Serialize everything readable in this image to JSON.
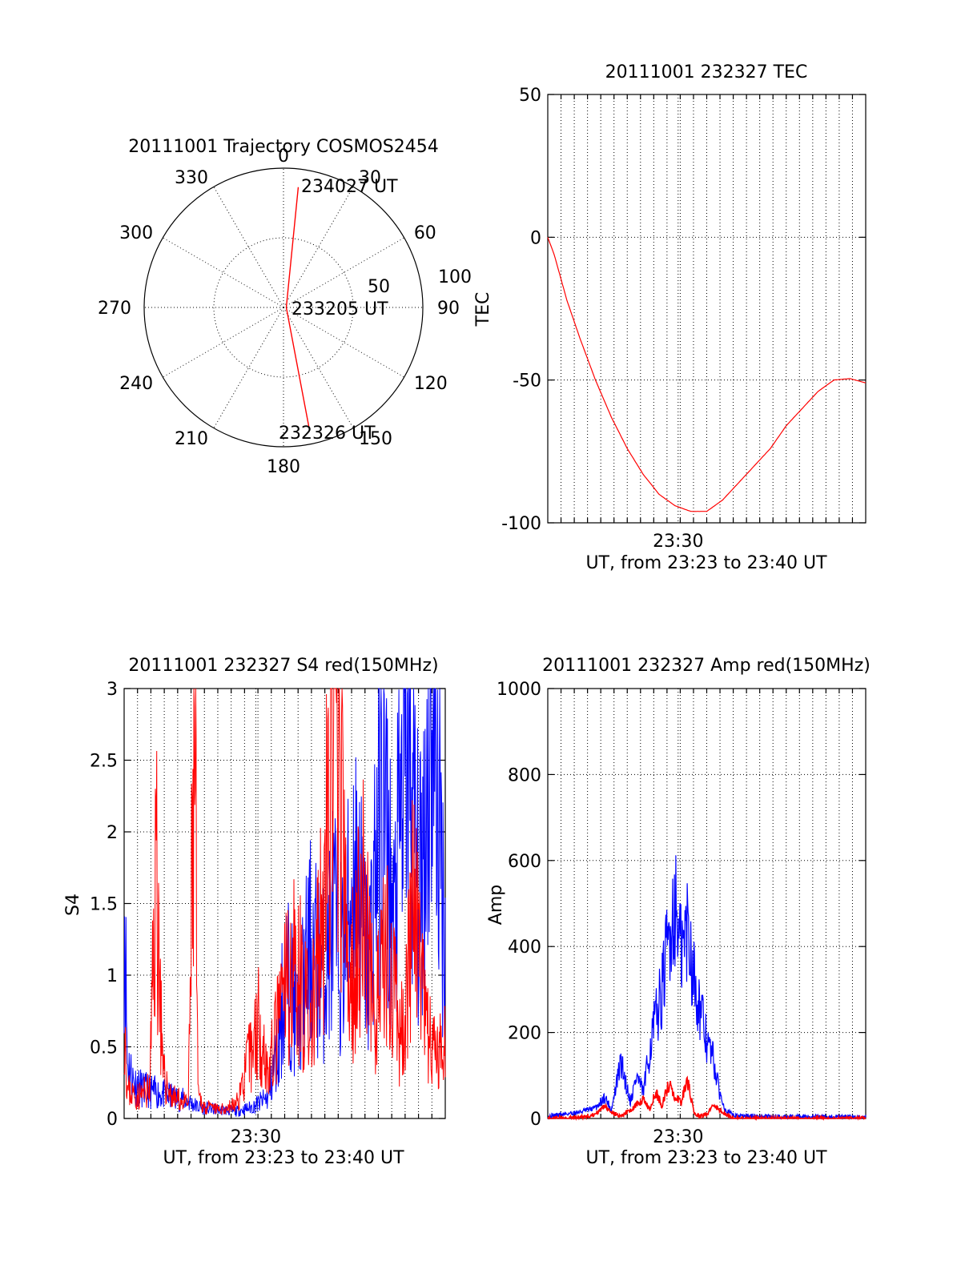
{
  "chart_data": [
    {
      "type": "polar",
      "title": "20111001 Trajectory COSMOS2454",
      "angle_ticks": [
        "0",
        "30",
        "60",
        "90",
        "120",
        "150",
        "180",
        "210",
        "240",
        "270",
        "300",
        "330"
      ],
      "radius_ticks": [
        "50",
        "100"
      ],
      "rlim": [
        0,
        100
      ],
      "trajectory": {
        "color": "#ff0000",
        "points": [
          {
            "azimuth_deg": 168,
            "zenith_deg": 88
          },
          {
            "azimuth_deg": 90,
            "zenith_deg": 2
          },
          {
            "azimuth_deg": 7,
            "zenith_deg": 87
          }
        ]
      },
      "annotations": [
        "234027 UT",
        "233205 UT",
        "232326 UT"
      ]
    },
    {
      "type": "line",
      "title": "20111001 232327 TEC",
      "xlabel": "UT, from 23:23 to 23:40 UT",
      "ylabel": "TEC",
      "xticklabels": [
        "23:30"
      ],
      "yticks": [
        "50",
        "0",
        "-50",
        "-100"
      ],
      "xlim": [
        0,
        1000
      ],
      "ylim": [
        -100,
        50
      ],
      "series": [
        {
          "color": "#ff0000",
          "x": [
            0,
            20,
            60,
            100,
            150,
            200,
            250,
            300,
            350,
            400,
            450,
            500,
            550,
            600,
            650,
            700,
            750,
            800,
            850,
            900,
            950,
            1000
          ],
          "y": [
            0,
            -6,
            -22,
            -35,
            -50,
            -63,
            -74,
            -83,
            -90,
            -94,
            -96,
            -96,
            -92,
            -86,
            -80,
            -74,
            -66,
            -60,
            -54,
            -50,
            -49.5,
            -51
          ]
        }
      ]
    },
    {
      "type": "line",
      "title": "20111001 232327 S4 red(150MHz)",
      "xlabel": "UT, from 23:23 to 23:40 UT",
      "ylabel": "S4",
      "xticklabels": [
        "23:30"
      ],
      "yticks": [
        "0",
        "0.5",
        "1",
        "1.5",
        "2",
        "2.5",
        "3"
      ],
      "xlim": [
        0,
        1000
      ],
      "ylim": [
        0,
        3
      ],
      "series": [
        {
          "color": "#0000ff",
          "x": [
            0,
            10,
            30,
            60,
            100,
            150,
            200,
            230,
            260,
            300,
            350,
            400,
            450,
            480,
            500,
            520,
            540,
            580,
            620,
            650,
            680,
            720,
            760,
            800,
            840,
            880,
            920,
            960,
            1000
          ],
          "y": [
            1.7,
            0.4,
            0.25,
            0.2,
            0.18,
            0.15,
            0.12,
            0.08,
            0.07,
            0.06,
            0.05,
            0.08,
            0.15,
            0.5,
            1.0,
            0.9,
            0.7,
            1.2,
            1.0,
            1.4,
            1.1,
            1.8,
            1.0,
            2.4,
            1.3,
            2.8,
            1.5,
            3.0,
            1.2
          ]
        },
        {
          "color": "#ff0000",
          "x": [
            0,
            10,
            40,
            80,
            100,
            120,
            150,
            200,
            220,
            230,
            250,
            300,
            350,
            400,
            420,
            450,
            500,
            540,
            580,
            620,
            660,
            700,
            740,
            780,
            820,
            860,
            900,
            940,
            980,
            1000
          ],
          "y": [
            0.9,
            0.2,
            0.15,
            0.2,
            1.9,
            0.3,
            0.15,
            0.1,
            2.75,
            0.15,
            0.08,
            0.06,
            0.1,
            0.5,
            0.7,
            0.3,
            0.9,
            1.1,
            0.6,
            1.4,
            3.0,
            0.8,
            1.6,
            0.7,
            1.2,
            0.5,
            1.5,
            0.6,
            0.4,
            0.7
          ]
        }
      ]
    },
    {
      "type": "line",
      "title": "20111001 232327 Amp red(150MHz)",
      "xlabel": "UT, from 23:23 to 23:40 UT",
      "ylabel": "Amp",
      "xticklabels": [
        "23:30"
      ],
      "yticks": [
        "0",
        "200",
        "400",
        "600",
        "800",
        "1000"
      ],
      "xlim": [
        0,
        1000
      ],
      "ylim": [
        0,
        1000
      ],
      "series": [
        {
          "color": "#0000ff",
          "x": [
            0,
            50,
            100,
            150,
            180,
            200,
            230,
            260,
            280,
            300,
            330,
            360,
            380,
            400,
            420,
            440,
            460,
            480,
            500,
            520,
            540,
            560,
            580,
            600,
            650,
            700,
            800,
            900,
            1000
          ],
          "y": [
            5,
            10,
            15,
            25,
            50,
            20,
            130,
            40,
            100,
            60,
            200,
            300,
            420,
            500,
            380,
            450,
            330,
            250,
            180,
            140,
            60,
            20,
            10,
            5,
            5,
            4,
            4,
            3,
            3
          ],
          "name": ""
        },
        {
          "color": "#ff0000",
          "x": [
            0,
            100,
            150,
            180,
            200,
            230,
            260,
            300,
            320,
            340,
            360,
            380,
            400,
            420,
            440,
            460,
            480,
            500,
            520,
            540,
            560,
            580,
            600,
            650,
            700,
            1000
          ],
          "y": [
            0,
            2,
            10,
            30,
            15,
            5,
            20,
            45,
            20,
            60,
            30,
            80,
            50,
            40,
            90,
            10,
            5,
            10,
            30,
            20,
            10,
            2,
            0,
            0,
            0,
            0
          ]
        }
      ]
    }
  ],
  "colors": {
    "series_red": "#ff0000",
    "series_blue": "#0000ff"
  }
}
